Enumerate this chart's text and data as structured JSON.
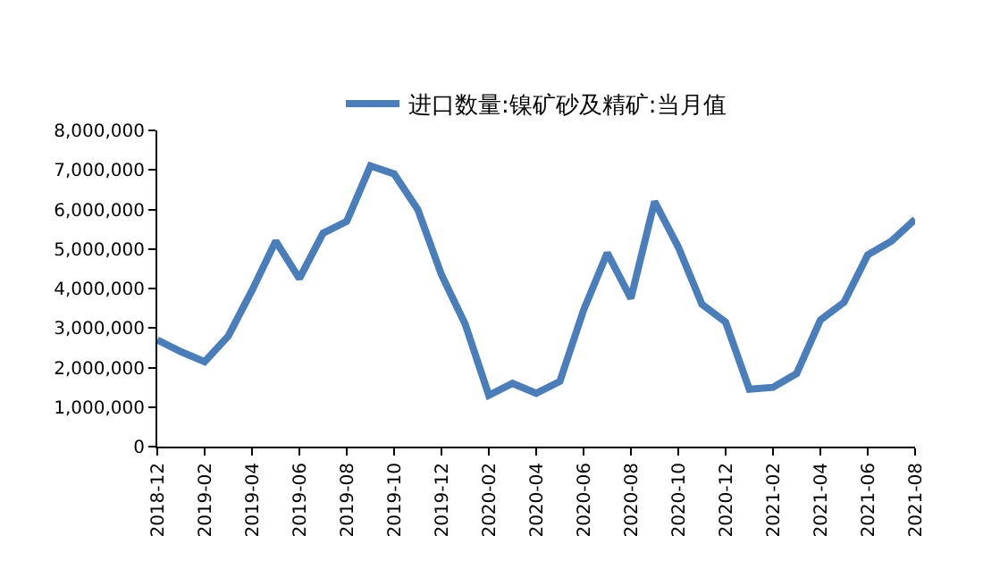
{
  "chart_data": {
    "type": "line",
    "categories": [
      "2018-12",
      null,
      "2019-02",
      null,
      "2019-04",
      null,
      "2019-06",
      null,
      "2019-08",
      null,
      "2019-10",
      null,
      "2019-12",
      null,
      "2020-02",
      null,
      "2020-04",
      null,
      "2020-06",
      null,
      "2020-08",
      null,
      "2020-10",
      null,
      "2020-12",
      null,
      "2021-02",
      null,
      "2021-04",
      null,
      "2021-06",
      null,
      "2021-08"
    ],
    "series": [
      {
        "name": "进口数量:镍矿砂及精矿:当月值",
        "color": "#4a7ebb",
        "values": [
          2700000,
          2400000,
          2150000,
          2800000,
          3950000,
          5200000,
          4250000,
          5400000,
          5700000,
          7100000,
          6900000,
          6000000,
          4350000,
          3100000,
          1300000,
          1600000,
          1350000,
          1650000,
          3450000,
          4900000,
          3750000,
          6200000,
          5050000,
          3600000,
          3150000,
          1450000,
          1500000,
          1850000,
          3200000,
          3650000,
          4850000,
          5200000,
          5750000
        ]
      }
    ],
    "ylim": [
      0,
      8000000
    ],
    "yticks": [
      {
        "value": 0,
        "label": "0"
      },
      {
        "value": 1000000,
        "label": "1,000,000"
      },
      {
        "value": 2000000,
        "label": "2,000,000"
      },
      {
        "value": 3000000,
        "label": "3,000,000"
      },
      {
        "value": 4000000,
        "label": "4,000,000"
      },
      {
        "value": 5000000,
        "label": "5,000,000"
      },
      {
        "value": 6000000,
        "label": "6,000,000"
      },
      {
        "value": 7000000,
        "label": "7,000,000"
      },
      {
        "value": 8000000,
        "label": "8,000,000"
      }
    ],
    "legend": "top",
    "marker": "none",
    "line_style": "solid"
  }
}
